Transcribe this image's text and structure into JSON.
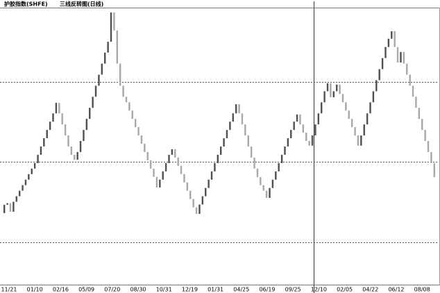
{
  "chart_data": {
    "type": "line-break",
    "title": "护胶指数(SHFE)",
    "subtitle": "三线反转图(日线)",
    "up_color": "#505050",
    "down_color": "#a8a8a8",
    "ylim": [
      0,
      100
    ],
    "xlabels": [
      "11/21",
      "01/10",
      "02/16",
      "05/09",
      "07/20",
      "08/30",
      "10/31",
      "12/19",
      "01/31",
      "04/25",
      "06/19",
      "09/25",
      "12/10",
      "02/05",
      "04/22",
      "06/12",
      "08/08"
    ],
    "values": [
      25.9,
      28.9,
      29.5,
      26.4,
      30,
      32,
      34,
      36,
      38,
      40,
      42,
      44,
      47,
      50,
      53,
      56,
      59,
      62,
      65.8,
      62,
      58,
      54,
      50,
      47,
      45.2,
      48,
      52,
      56,
      60,
      64,
      68,
      72,
      76,
      80,
      84,
      87.9,
      98.5,
      92,
      80,
      72,
      68,
      66,
      63,
      60,
      57,
      54,
      51,
      48,
      45,
      42,
      39,
      35.2,
      38,
      41,
      44,
      47,
      49,
      46,
      43,
      40,
      37,
      34,
      31,
      28,
      25.6,
      29,
      32,
      35,
      38,
      41,
      44,
      47,
      50,
      53,
      56,
      59,
      62,
      65.3,
      62,
      58,
      54,
      50,
      46,
      42,
      38.9,
      36,
      34,
      31.4,
      35,
      38,
      41,
      44,
      47,
      50,
      53,
      56,
      59,
      61.6,
      58,
      55,
      52,
      50.3,
      54,
      58,
      62,
      66,
      70,
      72.9,
      67.8,
      70,
      72.4,
      69,
      66,
      63,
      60,
      57,
      54,
      50.3,
      54,
      58,
      62,
      66,
      70,
      74,
      78,
      82,
      86,
      89,
      91.7,
      86,
      80.4,
      84.2,
      80,
      76,
      72,
      68,
      64,
      60,
      56,
      52,
      48,
      44,
      38.9
    ]
  }
}
